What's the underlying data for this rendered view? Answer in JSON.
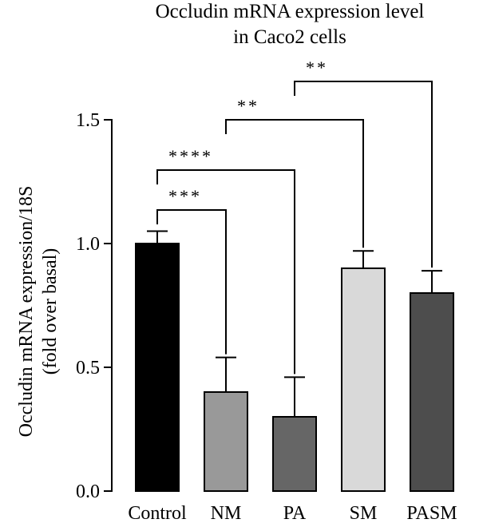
{
  "chart_data": {
    "type": "bar",
    "title": [
      "Occludin mRNA expression level",
      "in Caco2 cells"
    ],
    "ylabel": [
      "Occludin mRNA expression/18S",
      "(fold over basal)"
    ],
    "xlabel": "",
    "categories": [
      "Control",
      "NM",
      "PA",
      "SM",
      "PASM"
    ],
    "values": [
      1.0,
      0.4,
      0.3,
      0.9,
      0.8
    ],
    "errors": [
      0.05,
      0.14,
      0.16,
      0.07,
      0.09
    ],
    "colors": [
      "#000000",
      "#999999",
      "#666666",
      "#d9d9d9",
      "#4d4d4d"
    ],
    "ylim": [
      0,
      1.5
    ],
    "yticks": [
      0.0,
      0.5,
      1.0,
      1.5
    ],
    "ytick_labels": [
      "0.0",
      "0.5",
      "1.0",
      "1.5"
    ],
    "grid": false,
    "significance": [
      {
        "from": "Control",
        "to": "NM",
        "label": "***"
      },
      {
        "from": "Control",
        "to": "PA",
        "label": "****"
      },
      {
        "from": "NM",
        "to": "SM",
        "label": "**"
      },
      {
        "from": "PA",
        "to": "PASM",
        "label": "**"
      }
    ]
  }
}
